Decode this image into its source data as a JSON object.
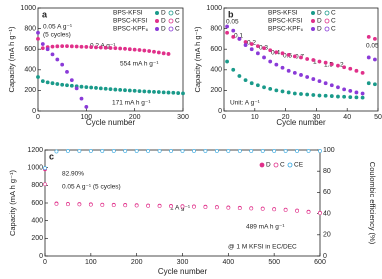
{
  "chart_data": [
    {
      "type": "line",
      "panel_label": "a",
      "x_label": "Cycle number",
      "y_label": "Capacity (mA h g⁻¹)",
      "xlim": [
        0,
        300
      ],
      "xticks": [
        0,
        100,
        200,
        300
      ],
      "ylim": [
        0,
        1000
      ],
      "yticks": [
        0,
        200,
        400,
        600,
        800,
        1000
      ],
      "legend_labels": [
        "D",
        "C"
      ],
      "x": [
        0,
        10,
        20,
        30,
        40,
        50,
        60,
        70,
        80,
        90,
        100,
        110,
        120,
        130,
        140,
        150,
        160,
        170,
        180,
        190,
        200,
        210,
        220,
        230,
        240,
        250,
        260,
        270,
        280,
        290,
        300
      ],
      "series": [
        {
          "name": "BPS-KFSI",
          "color": "#1a9a8a",
          "values": [
            330,
            290,
            278,
            270,
            262,
            255,
            250,
            245,
            240,
            236,
            232,
            228,
            224,
            220,
            216,
            212,
            208,
            205,
            202,
            199,
            196,
            193,
            190,
            188,
            186,
            184,
            181,
            179,
            177,
            174,
            171
          ]
        },
        {
          "name": "BPSC-KFSI",
          "color": "#e0308a",
          "values": [
            700,
            610,
            620,
            625,
            628,
            630,
            630,
            628,
            626,
            624,
            622,
            620,
            618,
            616,
            614,
            612,
            610,
            607,
            604,
            600,
            596,
            592,
            587,
            582,
            575,
            568,
            560,
            554,
            null,
            null,
            null
          ]
        },
        {
          "name": "BPSC-KPF₆",
          "color": "#8a3ad8",
          "values": [
            760,
            650,
            600,
            550,
            500,
            450,
            380,
            300,
            220,
            120,
            40,
            null,
            null,
            null,
            null,
            null,
            null,
            null,
            null,
            null,
            null,
            null,
            null,
            null,
            null,
            null,
            null,
            null,
            null,
            null,
            null
          ]
        }
      ],
      "annotations": [
        "0.05 A g⁻¹",
        "(5 cycles)",
        "0.2 A g⁻¹",
        "554 mA h g⁻¹",
        "171 mA h g⁻¹"
      ]
    },
    {
      "type": "line",
      "panel_label": "b",
      "x_label": "Cycle number",
      "y_label": "Capacity (mA h g⁻¹)",
      "xlim": [
        0,
        50
      ],
      "xticks": [
        0,
        10,
        20,
        30,
        40,
        50
      ],
      "ylim": [
        0,
        1000
      ],
      "yticks": [
        0,
        200,
        400,
        600,
        800,
        1000
      ],
      "legend_labels": [
        "D",
        "C"
      ],
      "x": [
        1,
        3,
        5,
        7,
        9,
        11,
        13,
        15,
        17,
        19,
        21,
        23,
        25,
        27,
        29,
        31,
        33,
        35,
        37,
        39,
        41,
        43,
        45,
        47,
        49
      ],
      "series": [
        {
          "name": "BPS-KFSI",
          "color": "#1a9a8a",
          "values": [
            480,
            400,
            340,
            300,
            270,
            250,
            230,
            215,
            200,
            190,
            180,
            170,
            165,
            160,
            155,
            150,
            148,
            145,
            140,
            138,
            135,
            132,
            130,
            270,
            260
          ]
        },
        {
          "name": "BPSC-KFSI",
          "color": "#e0308a",
          "values": [
            760,
            720,
            700,
            670,
            650,
            630,
            610,
            590,
            570,
            560,
            545,
            530,
            520,
            505,
            495,
            480,
            470,
            455,
            440,
            425,
            410,
            390,
            370,
            720,
            700
          ]
        },
        {
          "name": "BPSC-KPF₆",
          "color": "#8a3ad8",
          "values": [
            820,
            780,
            700,
            640,
            600,
            560,
            520,
            480,
            450,
            420,
            390,
            370,
            350,
            330,
            310,
            290,
            270,
            250,
            230,
            210,
            195,
            180,
            170,
            520,
            500
          ]
        }
      ],
      "annotations": [
        "0.05",
        "0.1",
        "0.2",
        "0.3",
        "0.4",
        "0.5",
        "0.7",
        "1",
        "1.5",
        "2",
        "0.05",
        "Unit: A g⁻¹"
      ]
    },
    {
      "type": "line",
      "panel_label": "c",
      "x_label": "Cycle number",
      "y_label": "Capacity (mA h g⁻¹)",
      "y_label_right": "Coulombic efficiency (%)",
      "xlim": [
        0,
        600
      ],
      "xticks": [
        0,
        100,
        200,
        300,
        400,
        500,
        600
      ],
      "ylim": [
        0,
        1200
      ],
      "yticks": [
        0,
        200,
        400,
        600,
        800,
        1000,
        1200
      ],
      "y2lim": [
        0,
        100
      ],
      "y2ticks": [
        0,
        20,
        40,
        60,
        80,
        100
      ],
      "x": [
        0,
        25,
        50,
        75,
        100,
        125,
        150,
        175,
        200,
        225,
        250,
        275,
        300,
        325,
        350,
        375,
        400,
        425,
        450,
        475,
        500,
        525,
        550,
        575,
        600
      ],
      "series": [
        {
          "name": "D",
          "color": "#e0308a",
          "fill_style": "filled",
          "values": [
            980,
            595,
            590,
            588,
            585,
            582,
            580,
            578,
            575,
            572,
            570,
            567,
            565,
            562,
            558,
            555,
            550,
            546,
            542,
            538,
            532,
            525,
            515,
            502,
            489
          ]
        },
        {
          "name": "C",
          "color": "#e0308a",
          "fill_style": "open",
          "values": [
            812,
            590,
            586,
            584,
            581,
            578,
            576,
            574,
            571,
            568,
            566,
            563,
            561,
            558,
            554,
            551,
            546,
            542,
            538,
            534,
            528,
            521,
            511,
            498,
            486
          ]
        },
        {
          "name": "CE",
          "color": "#29a3e0",
          "fill_style": "open",
          "axis": "y2",
          "values": [
            82.9,
            98.6,
            99,
            99,
            99,
            99,
            99,
            99,
            99,
            99,
            99,
            99,
            99,
            99,
            99,
            99,
            99,
            99,
            99,
            99,
            99,
            99,
            99,
            99,
            99
          ]
        }
      ],
      "annotations": [
        "82.90%",
        "0.05 A g⁻¹ (5 cycles)",
        "1 A g⁻¹",
        "489 mA h g⁻¹",
        "@ 1 M KFSI in EC/DEC"
      ]
    }
  ]
}
